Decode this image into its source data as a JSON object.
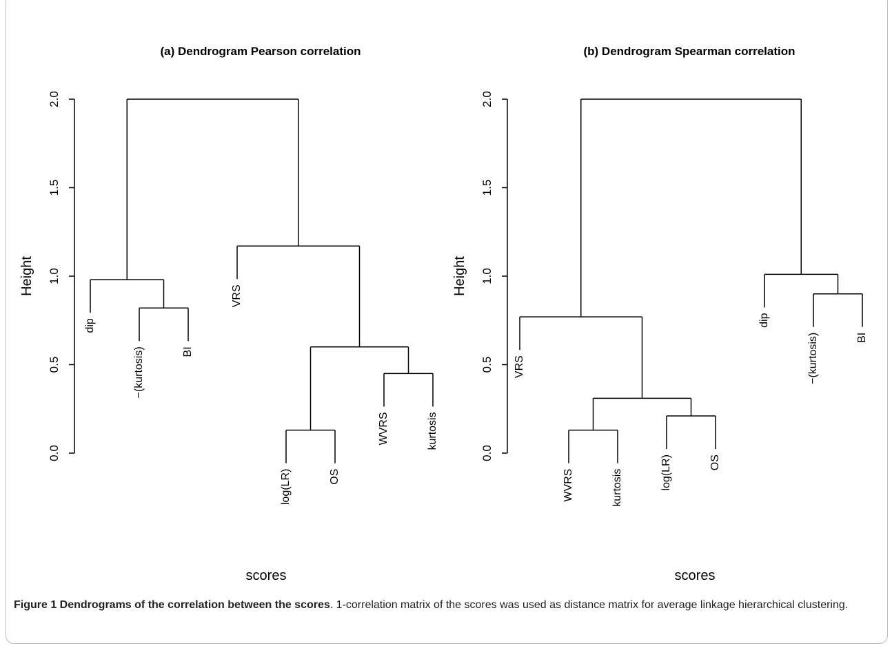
{
  "chart_data": [
    {
      "type": "dendrogram",
      "title": "(a) Dendrogram Pearson correlation",
      "ylabel": "Height",
      "xlabel": "scores",
      "ylim": [
        0,
        2
      ],
      "yticks": [
        {
          "value": 0,
          "label": "0.0"
        },
        {
          "value": 0.5,
          "label": "0.5"
        },
        {
          "value": 1,
          "label": "1.0"
        },
        {
          "value": 1.5,
          "label": "1.5"
        },
        {
          "value": 2,
          "label": "2.0"
        }
      ],
      "color": "#000000",
      "tree": {
        "height": 2.0,
        "children": [
          {
            "height": 0.98,
            "children": [
              {
                "label": "dip"
              },
              {
                "height": 0.82,
                "children": [
                  {
                    "label": "−(kurtosis)"
                  },
                  {
                    "label": "BI"
                  }
                ]
              }
            ]
          },
          {
            "height": 1.17,
            "children": [
              {
                "label": "VRS"
              },
              {
                "height": 0.6,
                "children": [
                  {
                    "height": 0.13,
                    "children": [
                      {
                        "label": "log(LR)"
                      },
                      {
                        "label": "OS"
                      }
                    ]
                  },
                  {
                    "height": 0.45,
                    "children": [
                      {
                        "label": "WVRS"
                      },
                      {
                        "label": "kurtosis"
                      }
                    ]
                  }
                ]
              }
            ]
          }
        ]
      }
    },
    {
      "type": "dendrogram",
      "title": "(b) Dendrogram Spearman correlation",
      "ylabel": "Height",
      "xlabel": "scores",
      "ylim": [
        0,
        2
      ],
      "yticks": [
        {
          "value": 0,
          "label": "0.0"
        },
        {
          "value": 0.5,
          "label": "0.5"
        },
        {
          "value": 1,
          "label": "1.0"
        },
        {
          "value": 1.5,
          "label": "1.5"
        },
        {
          "value": 2,
          "label": "2.0"
        }
      ],
      "color": "#000000",
      "tree": {
        "height": 2.0,
        "children": [
          {
            "height": 0.77,
            "children": [
              {
                "label": "VRS"
              },
              {
                "height": 0.31,
                "children": [
                  {
                    "height": 0.13,
                    "children": [
                      {
                        "label": "WVRS"
                      },
                      {
                        "label": "kurtosis"
                      }
                    ]
                  },
                  {
                    "height": 0.21,
                    "children": [
                      {
                        "label": "log(LR)"
                      },
                      {
                        "label": "OS"
                      }
                    ]
                  }
                ]
              }
            ]
          },
          {
            "height": 1.01,
            "children": [
              {
                "label": "dip"
              },
              {
                "height": 0.9,
                "children": [
                  {
                    "label": "−(kurtosis)"
                  },
                  {
                    "label": "BI"
                  }
                ]
              }
            ]
          }
        ]
      }
    }
  ],
  "caption": {
    "label": "Figure 1 Dendrograms of the correlation between the scores",
    "text": ". 1-correlation matrix of the scores was used as distance matrix for average linkage hierarchical clustering."
  }
}
